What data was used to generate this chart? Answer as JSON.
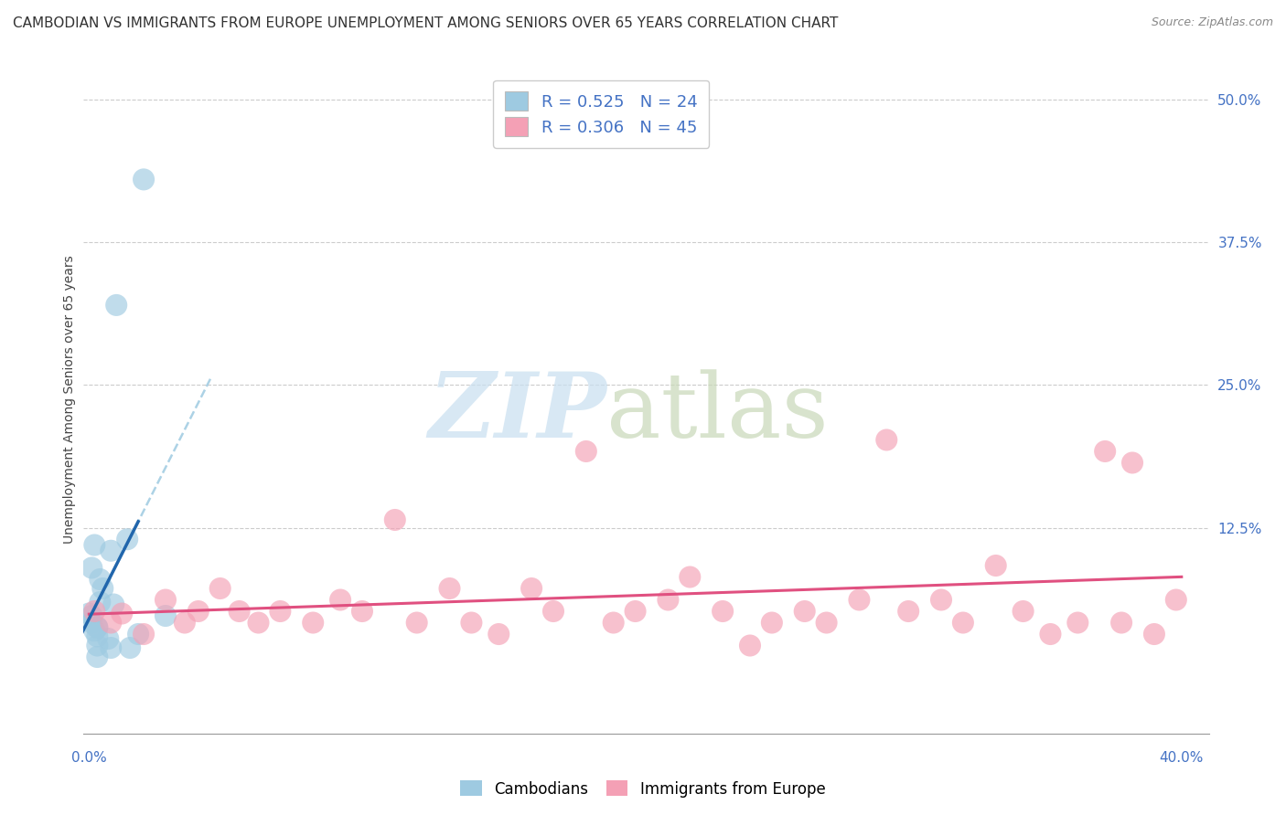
{
  "title": "CAMBODIAN VS IMMIGRANTS FROM EUROPE UNEMPLOYMENT AMONG SENIORS OVER 65 YEARS CORRELATION CHART",
  "source": "Source: ZipAtlas.com",
  "ylabel": "Unemployment Among Seniors over 65 years",
  "ytick_labels": [
    "50.0%",
    "37.5%",
    "25.0%",
    "12.5%"
  ],
  "ytick_values": [
    0.5,
    0.375,
    0.25,
    0.125
  ],
  "xlim": [
    -0.002,
    0.41
  ],
  "ylim": [
    -0.055,
    0.53
  ],
  "legend_entry1": "R = 0.525   N = 24",
  "legend_entry2": "R = 0.306   N = 45",
  "legend_label1": "Cambodians",
  "legend_label2": "Immigrants from Europe",
  "blue_color": "#9ecae1",
  "pink_color": "#f4a0b5",
  "blue_line_color": "#2166ac",
  "pink_line_color": "#e05080",
  "blue_dash_color": "#9ecae1",
  "blue_scatter_x": [
    0.02,
    0.01,
    0.002,
    0.001,
    0.008,
    0.004,
    0.0,
    0.001,
    0.002,
    0.003,
    0.005,
    0.004,
    0.014,
    0.001,
    0.009,
    0.018,
    0.003,
    0.008,
    0.028,
    0.003,
    0.007,
    0.015,
    0.003,
    0.003
  ],
  "blue_scatter_y": [
    0.43,
    0.32,
    0.11,
    0.09,
    0.105,
    0.08,
    0.05,
    0.042,
    0.035,
    0.03,
    0.072,
    0.06,
    0.115,
    0.048,
    0.058,
    0.032,
    0.038,
    0.02,
    0.048,
    0.022,
    0.028,
    0.02,
    0.038,
    0.012
  ],
  "pink_scatter_x": [
    0.002,
    0.008,
    0.012,
    0.02,
    0.028,
    0.035,
    0.04,
    0.048,
    0.055,
    0.062,
    0.07,
    0.082,
    0.092,
    0.1,
    0.112,
    0.12,
    0.132,
    0.14,
    0.15,
    0.162,
    0.17,
    0.182,
    0.192,
    0.2,
    0.212,
    0.22,
    0.232,
    0.242,
    0.25,
    0.262,
    0.27,
    0.282,
    0.292,
    0.3,
    0.312,
    0.32,
    0.332,
    0.342,
    0.352,
    0.362,
    0.372,
    0.382,
    0.39,
    0.398,
    0.378
  ],
  "pink_scatter_y": [
    0.052,
    0.042,
    0.05,
    0.032,
    0.062,
    0.042,
    0.052,
    0.072,
    0.052,
    0.042,
    0.052,
    0.042,
    0.062,
    0.052,
    0.132,
    0.042,
    0.072,
    0.042,
    0.032,
    0.072,
    0.052,
    0.192,
    0.042,
    0.052,
    0.062,
    0.082,
    0.052,
    0.022,
    0.042,
    0.052,
    0.042,
    0.062,
    0.202,
    0.052,
    0.062,
    0.042,
    0.092,
    0.052,
    0.032,
    0.042,
    0.192,
    0.182,
    0.032,
    0.062,
    0.042
  ],
  "title_fontsize": 11,
  "source_fontsize": 9,
  "tick_fontsize": 11,
  "ylabel_fontsize": 10
}
